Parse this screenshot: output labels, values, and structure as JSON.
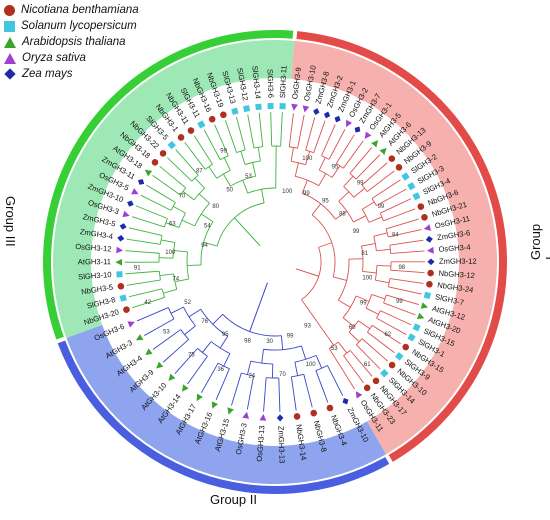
{
  "legend": [
    {
      "label": "Nicotiana benthamiana",
      "shape": "circle",
      "color": "#b0301f"
    },
    {
      "label": "Solanum lycopersicum",
      "shape": "square",
      "color": "#3fc6e0"
    },
    {
      "label": "Arabidopsis thaliana",
      "shape": "triangle",
      "color": "#3aa52c"
    },
    {
      "label": "Oryza sativa",
      "shape": "triangle-down",
      "color": "#a03fd0"
    },
    {
      "label": "Zea mays",
      "shape": "diamond",
      "color": "#1f2aa8"
    }
  ],
  "groups": [
    {
      "name": "Group I",
      "color": "#e24b47",
      "fill": "#f6b0ae",
      "line": "#d9534f"
    },
    {
      "name": "Group II",
      "color": "#4a5ee0",
      "fill": "#8fa4ee",
      "line": "#3645c8"
    },
    {
      "name": "Group III",
      "color": "#36cf36",
      "fill": "#9ee8b6",
      "line": "#3fb33f"
    }
  ],
  "tree": {
    "group1": [
      "OsGH3-9",
      "OsGH3-10",
      "ZmGH3-8",
      "ZmGH3-2",
      "ZmGH3-1",
      "OsGH3-2",
      "ZmGH3-7",
      "OsGH3-1",
      "AtGH3-5",
      "AtGH3-6",
      "NbGH3-13",
      "NbGH3-9",
      "SlGH3-2",
      "SlGH3-3",
      "SlGH3-4",
      "NbGH3-6",
      "NbGH3-21",
      "OsGH3-11",
      "ZmGH3-6",
      "OsGH3-4",
      "ZmGH3-12",
      "NbGH3-12",
      "NbGH3-24",
      "SlGH3-7",
      "AtGH3-12",
      "AtGH3-20",
      "SlGH3-15",
      "SlGH3-1",
      "NbGH3-15",
      "SlGH3-9",
      "NbGH3-10",
      "SlGH3-14",
      "NbGH3-17",
      "NbGH3-23",
      "OsGH3-11b"
    ],
    "group2": [
      "ZmGH3-10",
      "NbGH3-4",
      "NbGH3-8",
      "NbGH3-14",
      "ZmGH3-13",
      "OsGH3-13",
      "OsGH3-3",
      "AtGH3-15",
      "AtGH3-16",
      "AtGH3-17",
      "AtGH3-14",
      "AtGH3-10",
      "AtGH3-9",
      "AtGH3-4",
      "AtGH3-3",
      "OsGH3-6"
    ],
    "group3": [
      "NbGH3-20",
      "SlGH3-8",
      "NbGH3-5",
      "SlGH3-10",
      "AtGH3-11",
      "OsGH3-12",
      "ZmGH3-4",
      "ZmGH3-5",
      "OsGH3-3b",
      "ZmGH3-10b",
      "OsGH3-5",
      "ZmGH3-11",
      "AtGH3-18",
      "NbGH3-18",
      "NbGH3-22",
      "SlGH3-5",
      "NbGH3-1",
      "NbGH3-11",
      "SlGH3-11",
      "NbGH3-16",
      "NbGH3-19",
      "SlGH3-13",
      "SlGH3-12",
      "SlGH3-14b",
      "SlGH3-6",
      "SlGH3-11b"
    ]
  },
  "bootstrap": [
    "100",
    "100",
    "99",
    "95",
    "95",
    "99",
    "88",
    "99",
    "99",
    "84",
    "81",
    "98",
    "100",
    "99",
    "99",
    "62",
    "60",
    "61",
    "53",
    "93",
    "100",
    "99",
    "70",
    "30",
    "24",
    "98",
    "36",
    "95",
    "75",
    "76",
    "53",
    "52",
    "42",
    "74",
    "91",
    "100",
    "94",
    "63",
    "54",
    "70",
    "80",
    "87",
    "50",
    "99",
    "53"
  ]
}
